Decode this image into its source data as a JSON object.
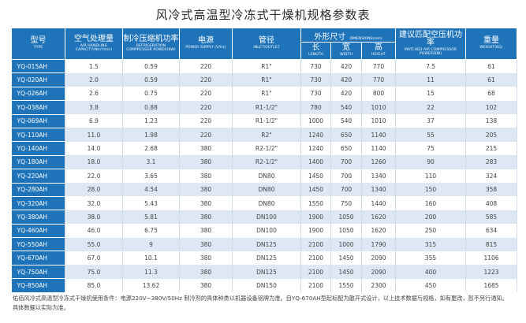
{
  "title": "风冷式高温型冷冻式干燥机规格参数表",
  "headers": {
    "model": {
      "cn": "型号",
      "en": "TYPE"
    },
    "capacity": {
      "cn": "空气处理量",
      "en": "AIR HANDLING CAPACITY(Nm³/min)"
    },
    "refrig_power": {
      "cn": "制冷压缩机功率",
      "en": "REFRIGERATION COMPRESSOR POWER(KW)"
    },
    "power": {
      "cn": "电源",
      "en": "POWER SUPPLY (V/Hz)"
    },
    "pipe": {
      "cn": "管径",
      "en": "INLET/OUTLET"
    },
    "dims": {
      "cn": "外形尺寸",
      "en": "DIMENSIONS(mm)"
    },
    "length": {
      "cn": "长",
      "en": "LENGTH"
    },
    "width": {
      "cn": "宽",
      "en": "WIDTH"
    },
    "height": {
      "cn": "高",
      "en": "HEIGHT"
    },
    "air_comp": {
      "cn": "建议匹配空压机功率",
      "en": "MATCHED AIR COMPRESSOR POWER(KW)"
    },
    "weight": {
      "cn": "重量",
      "en": "WEIGHT(KG)"
    }
  },
  "rows": [
    {
      "model": "YQ-015AH",
      "capacity": "1.5",
      "refrig": "0.59",
      "power": "220",
      "pipe": "R1\"",
      "length": "730",
      "width": "420",
      "height": "770",
      "air_comp": "7.5",
      "weight": "61"
    },
    {
      "model": "YQ-020AH",
      "capacity": "2.0",
      "refrig": "0.59",
      "power": "220",
      "pipe": "R1\"",
      "length": "730",
      "width": "420",
      "height": "770",
      "air_comp": "11",
      "weight": "61"
    },
    {
      "model": "YQ-026AH",
      "capacity": "2.6",
      "refrig": "0.75",
      "power": "220",
      "pipe": "R1\"",
      "length": "730",
      "width": "420",
      "height": "800",
      "air_comp": "15",
      "weight": "68"
    },
    {
      "model": "YQ-038AH",
      "capacity": "3.8",
      "refrig": "0.88",
      "power": "220",
      "pipe": "R1-1/2\"",
      "length": "780",
      "width": "540",
      "height": "1010",
      "air_comp": "22",
      "weight": "102"
    },
    {
      "model": "YQ-069AH",
      "capacity": "6.9",
      "refrig": "1.23",
      "power": "220",
      "pipe": "R1-1/2\"",
      "length": "1000",
      "width": "540",
      "height": "1010",
      "air_comp": "37",
      "weight": "138"
    },
    {
      "model": "YQ-110AH",
      "capacity": "11.0",
      "refrig": "1.98",
      "power": "220",
      "pipe": "R2\"",
      "length": "1240",
      "width": "650",
      "height": "1140",
      "air_comp": "55",
      "weight": "205"
    },
    {
      "model": "YQ-140AH",
      "capacity": "14.0",
      "refrig": "2.68",
      "power": "380",
      "pipe": "R2-1/2\"",
      "length": "1240",
      "width": "650",
      "height": "1140",
      "air_comp": "75",
      "weight": "215"
    },
    {
      "model": "YQ-180AH",
      "capacity": "18.0",
      "refrig": "3.1",
      "power": "380",
      "pipe": "R2-1/2\"",
      "length": "1400",
      "width": "700",
      "height": "1260",
      "air_comp": "90",
      "weight": "283"
    },
    {
      "model": "YQ-220AH",
      "capacity": "22.0",
      "refrig": "3.65",
      "power": "380",
      "pipe": "DN80",
      "length": "1450",
      "width": "700",
      "height": "1340",
      "air_comp": "110",
      "weight": "324"
    },
    {
      "model": "YQ-280AH",
      "capacity": "28.0",
      "refrig": "4.54",
      "power": "380",
      "pipe": "DN80",
      "length": "1450",
      "width": "700",
      "height": "1340",
      "air_comp": "150",
      "weight": "358"
    },
    {
      "model": "YQ-320AH",
      "capacity": "32.0",
      "refrig": "5.43",
      "power": "380",
      "pipe": "DN80",
      "length": "1550",
      "width": "750",
      "height": "1440",
      "air_comp": "160",
      "weight": "408"
    },
    {
      "model": "YQ-380AH",
      "capacity": "38.0",
      "refrig": "5.81",
      "power": "380",
      "pipe": "DN100",
      "length": "1900",
      "width": "1050",
      "height": "1620",
      "air_comp": "200",
      "weight": "585"
    },
    {
      "model": "YQ-460AH",
      "capacity": "46.0",
      "refrig": "6.75",
      "power": "380",
      "pipe": "DN100",
      "length": "1900",
      "width": "1050",
      "height": "1620",
      "air_comp": "250",
      "weight": "634"
    },
    {
      "model": "YQ-550AH",
      "capacity": "55.0",
      "refrig": "9",
      "power": "380",
      "pipe": "DN125",
      "length": "2100",
      "width": "1000",
      "height": "1790",
      "air_comp": "315",
      "weight": "815"
    },
    {
      "model": "YQ-670AH",
      "capacity": "67.0",
      "refrig": "10.1",
      "power": "380",
      "pipe": "DN125",
      "length": "2100",
      "width": "1450",
      "height": "2090",
      "air_comp": "355",
      "weight": "1106"
    },
    {
      "model": "YQ-750AH",
      "capacity": "75.0",
      "refrig": "11.3",
      "power": "380",
      "pipe": "DN125",
      "length": "2100",
      "width": "1450",
      "height": "2090",
      "air_comp": "400",
      "weight": "1223"
    },
    {
      "model": "YQ-850AH",
      "capacity": "85.0",
      "refrig": "13.62",
      "power": "380",
      "pipe": "DN150",
      "length": "2100",
      "width": "1550",
      "height": "2300",
      "air_comp": "450",
      "weight": "1685"
    }
  ],
  "footnote": "佑佰风冷式高温型冷冻式干燥机使用条件：电源220V~380V/50Hz 制冷剂的具体种类以机器设备铭牌为准。自YQ-670AH型起标配为散开式设计，以上技术数据与规格，如有更改，恕不另行通知。具体数据以实际为准。",
  "colors": {
    "header_bg": "#1e73b9",
    "stripe": "#dde8f4",
    "text": "#444444"
  }
}
